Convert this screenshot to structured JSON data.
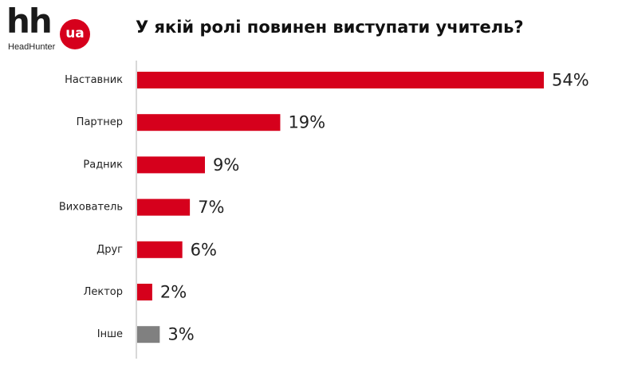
{
  "logo": {
    "mark": "hh",
    "badge": "ua",
    "subtitle": "HeadHunter",
    "badge_color": "#d6001c"
  },
  "chart_data": {
    "type": "bar",
    "orientation": "horizontal",
    "title": "У якій ролі повинен виступати учитель?",
    "categories": [
      "Наставник",
      "Партнер",
      "Радник",
      "Вихователь",
      "Друг",
      "Лектор",
      "Інше"
    ],
    "values": [
      54,
      19,
      9,
      7,
      6,
      2,
      3
    ],
    "value_labels": [
      "54%",
      "19%",
      "9%",
      "7%",
      "6%",
      "2%",
      "3%"
    ],
    "unit": "%",
    "colors": [
      "#d6001c",
      "#d6001c",
      "#d6001c",
      "#d6001c",
      "#d6001c",
      "#d6001c",
      "#808080"
    ],
    "xlim": [
      0,
      54
    ],
    "grid": false,
    "legend": "none"
  }
}
